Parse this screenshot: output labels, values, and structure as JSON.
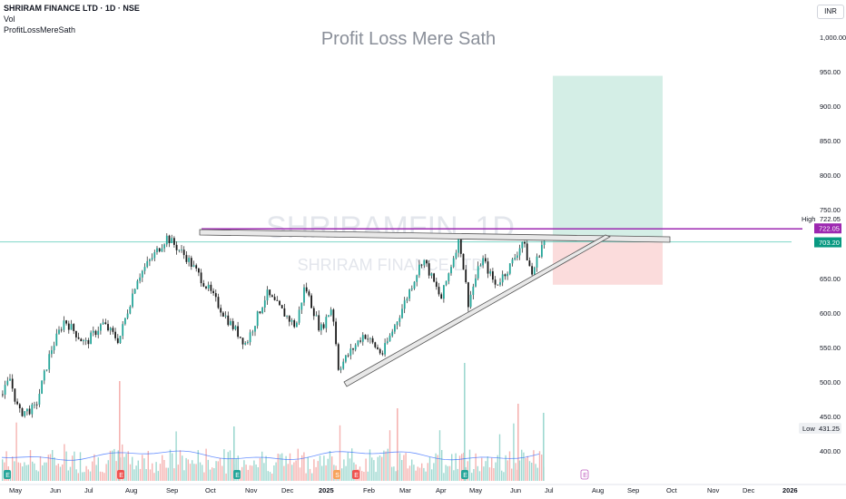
{
  "header": {
    "symbol_line": "SHRIRAM FINANCE LTD · 1D · NSE",
    "indicator_vol": "Vol",
    "indicator_custom": "ProfitLossMereSath"
  },
  "watermark": {
    "title": "Profit Loss Mere Sath",
    "symbol_big": "SHRIRAMFIN, 1D",
    "symbol_name": "SHRIRAM FINANCE LTD"
  },
  "currency": "INR",
  "colors": {
    "up": "#26a69a",
    "down": "#ef5350",
    "target_zone": "#d4eee6",
    "stop_zone": "#fbdcdc",
    "high_line": "#9c27b0",
    "last_price": "#089981",
    "volume_ma": "#2962ff"
  },
  "chart_data": {
    "type": "candlestick",
    "y_ticks": [
      "1,000.00",
      "950.00",
      "900.00",
      "850.00",
      "800.00",
      "750.00",
      "700.00",
      "650.00",
      "600.00",
      "550.00",
      "500.00",
      "450.00",
      "400.00"
    ],
    "x_ticks": [
      "May",
      "Jun",
      "Jul",
      "Aug",
      "Sep",
      "Oct",
      "Nov",
      "Dec",
      "2025",
      "Feb",
      "Mar",
      "Apr",
      "May",
      "Jun",
      "Jul",
      "Aug",
      "Sep",
      "Oct",
      "Nov",
      "Dec",
      "2026"
    ],
    "ylim": [
      370,
      1035
    ],
    "labels": {
      "high": {
        "text": "High",
        "value": "722.05",
        "price": 722.05
      },
      "high_line_value": {
        "value": "722.05",
        "price": 722.05
      },
      "last_price": {
        "value": "703.20",
        "price": 703.2
      },
      "low": {
        "text": "Low",
        "value": "431.25",
        "price": 431.25
      }
    },
    "position_tool": {
      "entry": 703,
      "target": 944,
      "stop": 641,
      "start": "Jul",
      "end": "Oct"
    },
    "pattern": "ascending-triangle",
    "resistance_line": [
      [
        "Sep",
        718
      ],
      [
        "Jul",
        707
      ]
    ],
    "support_line": [
      [
        "Jan",
        493
      ],
      [
        "Jul",
        706
      ]
    ],
    "price_path": [
      [
        "Apr 2024",
        482
      ],
      [
        "May 2024",
        505
      ],
      [
        "May 2024",
        455
      ],
      [
        "Jun 2024",
        462
      ],
      [
        "Jun 2024",
        545
      ],
      [
        "Jul 2024",
        590
      ],
      [
        "Jul 2024",
        555
      ],
      [
        "Aug 2024",
        585
      ],
      [
        "Aug 2024",
        560
      ],
      [
        "Sep 2024",
        650
      ],
      [
        "Sep 2024",
        710
      ],
      [
        "Oct 2024",
        680
      ],
      [
        "Oct 2024",
        640
      ],
      [
        "Nov 2024",
        590
      ],
      [
        "Nov 2024",
        555
      ],
      [
        "Nov 2024",
        628
      ],
      [
        "Dec 2024",
        580
      ],
      [
        "Dec 2024",
        640
      ],
      [
        "Dec 2024",
        575
      ],
      [
        "Jan 2025",
        610
      ],
      [
        "Jan 2025",
        520
      ],
      [
        "Feb 2025",
        570
      ],
      [
        "Feb 2025",
        540
      ],
      [
        "Mar 2025",
        600
      ],
      [
        "Mar 2025",
        680
      ],
      [
        "Apr 2025",
        620
      ],
      [
        "Apr 2025",
        710
      ],
      [
        "May 2025",
        615
      ],
      [
        "May 2025",
        680
      ],
      [
        "May 2025",
        640
      ],
      [
        "Jun 2025",
        670
      ],
      [
        "Jun 2025",
        705
      ],
      [
        "Jun 2025",
        655
      ],
      [
        "Jun 2025",
        703
      ]
    ],
    "volume_annotations": [],
    "event_markers": [
      {
        "label": "E",
        "date": "Apr 2024"
      },
      {
        "label": "E",
        "date": "Jul 2024"
      },
      {
        "label": "E",
        "date": "Oct 2024"
      },
      {
        "label": "S",
        "date": "Jan 2025"
      },
      {
        "label": "E",
        "date": "Jan 2025"
      },
      {
        "label": "E",
        "date": "Apr 2025"
      },
      {
        "label": "E",
        "date": "Jul 2025"
      }
    ]
  }
}
